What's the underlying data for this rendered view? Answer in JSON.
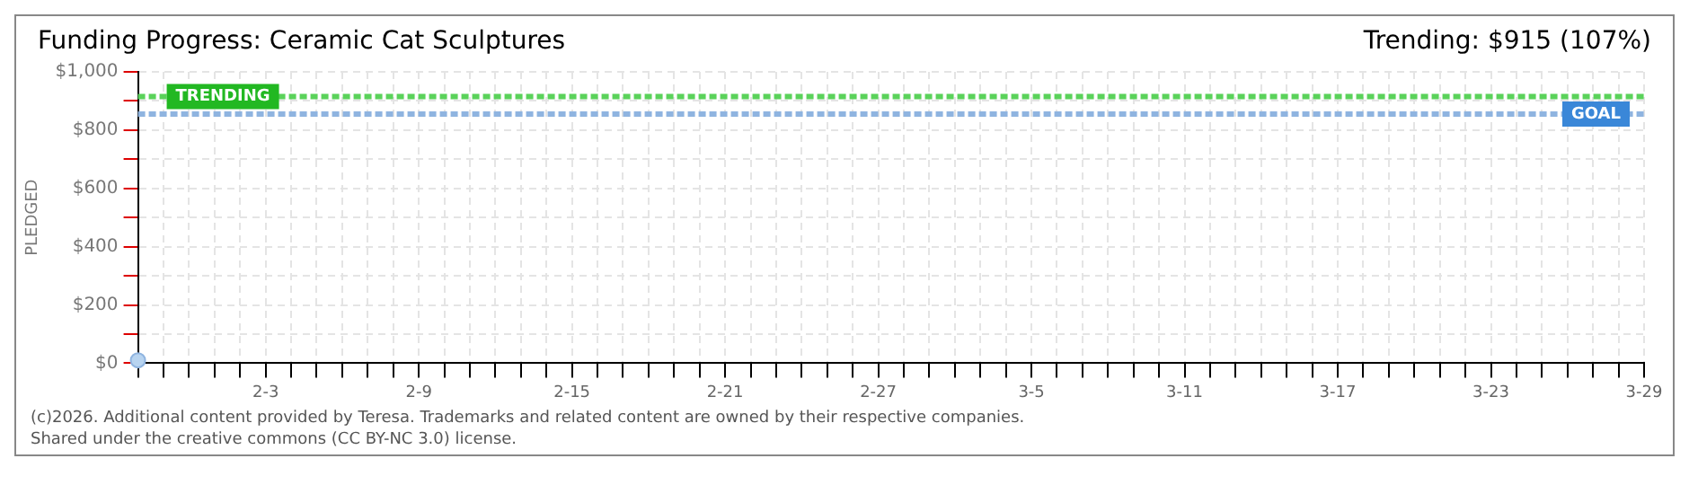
{
  "chart_data": {
    "type": "scatter",
    "title": "Funding Progress: Ceramic Cat Sculptures",
    "subtitle": "Trending: $915 (107%)",
    "ylabel": "PLEDGED",
    "x": [
      "--01-29"
    ],
    "series": [
      {
        "color": "#b8d4f0",
        "values": [
          10
        ]
      }
    ],
    "xlim": [
      "--01-29",
      "--03-29"
    ],
    "xticks": [
      {
        "value": "--01-29",
        "label": null
      },
      {
        "value": "--01-30",
        "label": null
      },
      {
        "value": "--01-31",
        "label": null
      },
      {
        "value": "--02-01",
        "label": null
      },
      {
        "value": "--02-02",
        "label": null
      },
      {
        "value": "--02-03",
        "label": "2-3"
      },
      {
        "value": "--02-04",
        "label": null
      },
      {
        "value": "--02-05",
        "label": null
      },
      {
        "value": "--02-06",
        "label": null
      },
      {
        "value": "--02-07",
        "label": null
      },
      {
        "value": "--02-08",
        "label": null
      },
      {
        "value": "--02-09",
        "label": "2-9"
      },
      {
        "value": "--02-10",
        "label": null
      },
      {
        "value": "--02-11",
        "label": null
      },
      {
        "value": "--02-12",
        "label": null
      },
      {
        "value": "--02-13",
        "label": null
      },
      {
        "value": "--02-14",
        "label": null
      },
      {
        "value": "--02-15",
        "label": "2-15"
      },
      {
        "value": "--02-16",
        "label": null
      },
      {
        "value": "--02-17",
        "label": null
      },
      {
        "value": "--02-18",
        "label": null
      },
      {
        "value": "--02-19",
        "label": null
      },
      {
        "value": "--02-20",
        "label": null
      },
      {
        "value": "--02-21",
        "label": "2-21"
      },
      {
        "value": "--02-22",
        "label": null
      },
      {
        "value": "--02-23",
        "label": null
      },
      {
        "value": "--02-24",
        "label": null
      },
      {
        "value": "--02-25",
        "label": null
      },
      {
        "value": "--02-26",
        "label": null
      },
      {
        "value": "--02-27",
        "label": "2-27"
      },
      {
        "value": "--02-28",
        "label": null
      },
      {
        "value": "--03-01",
        "label": null
      },
      {
        "value": "--03-02",
        "label": null
      },
      {
        "value": "--03-03",
        "label": null
      },
      {
        "value": "--03-04",
        "label": null
      },
      {
        "value": "--03-05",
        "label": "3-5"
      },
      {
        "value": "--03-06",
        "label": null
      },
      {
        "value": "--03-07",
        "label": null
      },
      {
        "value": "--03-08",
        "label": null
      },
      {
        "value": "--03-09",
        "label": null
      },
      {
        "value": "--03-10",
        "label": null
      },
      {
        "value": "--03-11",
        "label": "3-11"
      },
      {
        "value": "--03-12",
        "label": null
      },
      {
        "value": "--03-13",
        "label": null
      },
      {
        "value": "--03-14",
        "label": null
      },
      {
        "value": "--03-15",
        "label": null
      },
      {
        "value": "--03-16",
        "label": null
      },
      {
        "value": "--03-17",
        "label": "3-17"
      },
      {
        "value": "--03-18",
        "label": null
      },
      {
        "value": "--03-19",
        "label": null
      },
      {
        "value": "--03-20",
        "label": null
      },
      {
        "value": "--03-21",
        "label": null
      },
      {
        "value": "--03-22",
        "label": null
      },
      {
        "value": "--03-23",
        "label": "3-23"
      },
      {
        "value": "--03-24",
        "label": null
      },
      {
        "value": "--03-25",
        "label": null
      },
      {
        "value": "--03-26",
        "label": null
      },
      {
        "value": "--03-27",
        "label": null
      },
      {
        "value": "--03-28",
        "label": null
      },
      {
        "value": "--03-29",
        "label": "3-29"
      }
    ],
    "ylim": [
      0,
      1000
    ],
    "yticks": [
      {
        "value": 0,
        "label": "$0"
      },
      {
        "value": 100,
        "label": null
      },
      {
        "value": 200,
        "label": "$200"
      },
      {
        "value": 300,
        "label": null
      },
      {
        "value": 400,
        "label": "$400"
      },
      {
        "value": 500,
        "label": null
      },
      {
        "value": 600,
        "label": "$600"
      },
      {
        "value": 700,
        "label": null
      },
      {
        "value": 800,
        "label": "$800"
      },
      {
        "value": 900,
        "label": null
      },
      {
        "value": 1000,
        "label": "$1,000"
      }
    ],
    "grid": true,
    "marker": "circle",
    "ref_lines": [
      {
        "axis": "y",
        "value": 915,
        "label": "TRENDING",
        "color": "#5ad25a",
        "line_style": "dashed"
      },
      {
        "axis": "y",
        "value": 855,
        "label": "GOAL",
        "color": "#8fb4e0",
        "line_style": "dashed"
      }
    ],
    "annotations": [
      "(c)2026. Additional content provided by Teresa. Trademarks and related content are owned by their respective companies.",
      "Shared under the creative commons (CC BY-NC 3.0) license."
    ]
  }
}
